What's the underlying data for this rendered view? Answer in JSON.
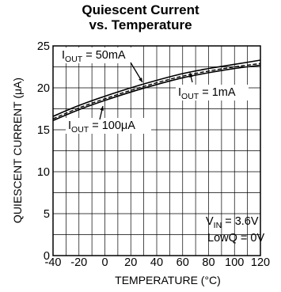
{
  "chart_data": {
    "type": "line",
    "title_lines": [
      "Quiescent Current",
      "vs. Temperature"
    ],
    "xlabel": "TEMPERATURE (°C)",
    "ylabel": "QUIESCENT CURRENT (μA)",
    "xlim": [
      -40,
      120
    ],
    "ylim": [
      0,
      25
    ],
    "x_ticks": [
      -40,
      -20,
      0,
      20,
      40,
      60,
      80,
      100,
      120
    ],
    "y_ticks": [
      0,
      5,
      10,
      15,
      20,
      25
    ],
    "x_minor_grid_step": 10,
    "y_minor_grid_step": 2.5,
    "grid": true,
    "series": [
      {
        "name": "IOUT = 50mA",
        "x": [
          -40,
          -20,
          0,
          20,
          40,
          60,
          80,
          100,
          120
        ],
        "y": [
          16.6,
          17.9,
          19.0,
          20.0,
          20.9,
          21.7,
          22.3,
          22.8,
          23.3
        ]
      },
      {
        "name": "IOUT = 1mA",
        "x": [
          -40,
          -20,
          0,
          20,
          40,
          60,
          80,
          100,
          120
        ],
        "y": [
          16.3,
          17.6,
          18.7,
          19.7,
          20.6,
          21.4,
          22.0,
          22.5,
          22.9
        ]
      },
      {
        "name": "IOUT = 100μA",
        "x": [
          -40,
          -20,
          0,
          20,
          40,
          60,
          80,
          100,
          120
        ],
        "y": [
          16.1,
          17.4,
          18.5,
          19.5,
          20.4,
          21.2,
          21.8,
          22.3,
          22.7
        ]
      }
    ],
    "annotations": {
      "iout50": {
        "pre": "I",
        "sub": "OUT",
        "post": " = 50mA"
      },
      "iout1": {
        "pre": "I",
        "sub": "OUT",
        "post": " = 1mA"
      },
      "iout100": {
        "pre": "I",
        "sub": "OUT",
        "post": " = 100μA"
      },
      "vin": {
        "pre": "V",
        "sub": "IN",
        "post": " = 3.6V"
      },
      "lowq": {
        "text": "LowQ = 0V"
      }
    }
  }
}
